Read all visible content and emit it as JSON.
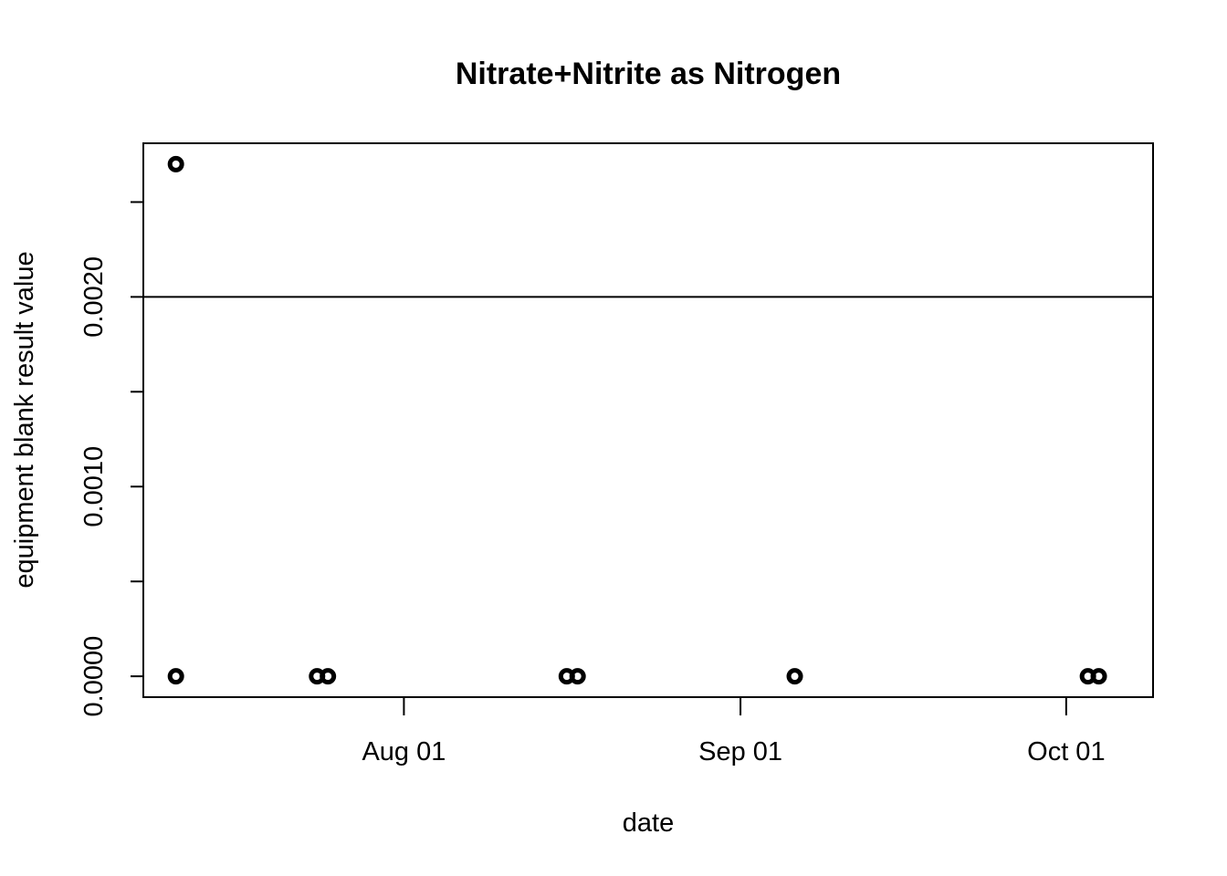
{
  "chart_data": {
    "type": "scatter",
    "title": "Nitrate+Nitrite as Nitrogen",
    "xlabel": "date",
    "ylabel": "equipment blank result value",
    "x_axis_type": "date",
    "xlim": [
      "2023-07-08",
      "2023-10-09"
    ],
    "ylim": [
      -0.00011,
      0.00281
    ],
    "x_ticks": [
      {
        "date": "2023-08-01",
        "label": "Aug 01"
      },
      {
        "date": "2023-09-01",
        "label": "Sep 01"
      },
      {
        "date": "2023-10-01",
        "label": "Oct 01"
      }
    ],
    "y_ticks": [
      0.0,
      0.0005,
      0.001,
      0.0015,
      0.002,
      0.0025
    ],
    "y_tick_labels": [
      {
        "value": 0.0,
        "label": "0.0000"
      },
      {
        "value": 0.001,
        "label": "0.0010"
      },
      {
        "value": 0.002,
        "label": "0.0020"
      }
    ],
    "reference_line": {
      "y": 0.002
    },
    "grid": false,
    "marker": "open-circle",
    "color": "#000000",
    "points": [
      {
        "x": "2023-07-11",
        "y": 0.0027
      },
      {
        "x": "2023-07-11",
        "y": 0.0
      },
      {
        "x": "2023-07-24",
        "y": 0.0
      },
      {
        "x": "2023-07-25",
        "y": 0.0
      },
      {
        "x": "2023-08-16",
        "y": 0.0
      },
      {
        "x": "2023-08-17",
        "y": 0.0
      },
      {
        "x": "2023-09-06",
        "y": 0.0
      },
      {
        "x": "2023-10-03",
        "y": 0.0
      },
      {
        "x": "2023-10-04",
        "y": 0.0
      }
    ]
  }
}
